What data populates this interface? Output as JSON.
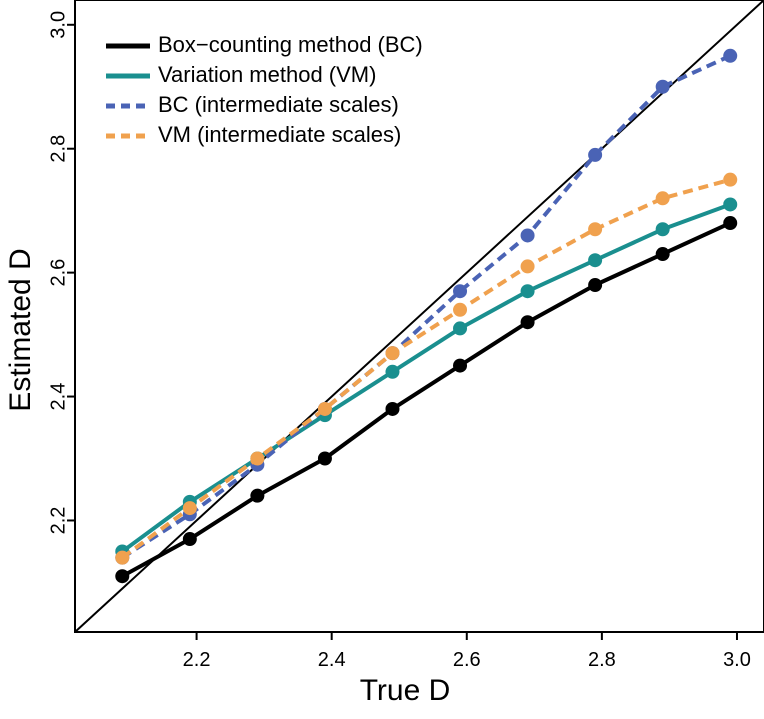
{
  "chart_data": {
    "type": "line",
    "xlabel": "True D",
    "ylabel": "Estimated D",
    "xlim": [
      2.02,
      3.04
    ],
    "ylim": [
      2.02,
      3.04
    ],
    "x": [
      2.09,
      2.19,
      2.29,
      2.39,
      2.49,
      2.59,
      2.69,
      2.79,
      2.89,
      2.99
    ],
    "x_ticks": [
      2.2,
      2.4,
      2.6,
      2.8,
      3.0
    ],
    "x_tick_labels": [
      "2.2",
      "2.4",
      "2.6",
      "2.8",
      "3.0"
    ],
    "y_ticks": [
      2.2,
      2.4,
      2.6,
      2.8,
      3.0
    ],
    "y_tick_labels": [
      "2.2",
      "2.4",
      "2.6",
      "2.8",
      "3.0"
    ],
    "identity_line": true,
    "grid": false,
    "legend_position": "top-left",
    "series": [
      {
        "name": "Box−counting method (BC)",
        "values": [
          2.11,
          2.17,
          2.24,
          2.3,
          2.38,
          2.45,
          2.52,
          2.58,
          2.63,
          2.68
        ],
        "color": "#000000",
        "dashed": false
      },
      {
        "name": "Variation method (VM)",
        "values": [
          2.15,
          2.23,
          2.3,
          2.37,
          2.44,
          2.51,
          2.57,
          2.62,
          2.67,
          2.71
        ],
        "color": "#1a8f8f",
        "dashed": false
      },
      {
        "name": "BC (intermediate scales)",
        "values": [
          2.14,
          2.21,
          2.29,
          2.38,
          2.47,
          2.57,
          2.66,
          2.79,
          2.9,
          2.95
        ],
        "color": "#4a63b5",
        "dashed": true
      },
      {
        "name": "VM (intermediate scales)",
        "values": [
          2.14,
          2.22,
          2.3,
          2.38,
          2.47,
          2.54,
          2.61,
          2.67,
          2.72,
          2.75
        ],
        "color": "#f0a14e",
        "dashed": true
      }
    ]
  }
}
